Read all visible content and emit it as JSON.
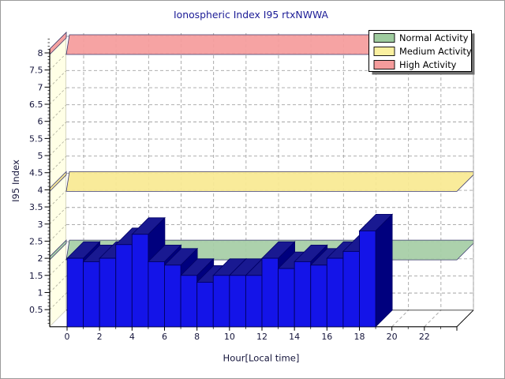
{
  "window": {
    "background": "#FFFFFF",
    "border_color": "#9B9B9B"
  },
  "chart_data": {
    "type": "bar",
    "projection": "3d",
    "title": "Ionospheric Index I95 rtxNWWA",
    "xlabel": "Hour[Local time]",
    "ylabel": "I95 Index",
    "x": [
      0,
      1,
      2,
      3,
      4,
      5,
      6,
      7,
      8,
      9,
      10,
      11,
      12,
      13,
      14,
      15,
      16,
      17,
      18
    ],
    "values": [
      2.0,
      1.9,
      2.0,
      2.4,
      2.7,
      1.9,
      1.8,
      1.5,
      1.3,
      1.5,
      1.5,
      1.5,
      2.0,
      1.7,
      1.9,
      1.8,
      2.0,
      2.2,
      2.8
    ],
    "x_axis": {
      "min": 0,
      "max": 24,
      "major_tick_step": 2,
      "minor_tick_step": 1,
      "tick_labels": [
        "0",
        "2",
        "4",
        "6",
        "8",
        "10",
        "12",
        "14",
        "16",
        "18",
        "20",
        "22"
      ]
    },
    "y_axis": {
      "min": 0,
      "max": 8.6,
      "major_tick_step": 0.5,
      "minor_tick_step": 0.1,
      "tick_labels": [
        "8",
        "7.5",
        "7",
        "6.5",
        "6",
        "5.5",
        "5",
        "4.5",
        "4",
        "3.5",
        "3",
        "2.5",
        "2",
        "1.5",
        "1",
        "0.5"
      ]
    },
    "grid": true,
    "legend_position": "top-right",
    "legend": [
      {
        "label": "Normal Activity",
        "color": "#9FCC9F"
      },
      {
        "label": "Medium Activity",
        "color": "#FAF0A0"
      },
      {
        "label": "High Activity",
        "color": "#F59C9C"
      }
    ],
    "bands": [
      {
        "name": "Normal Activity",
        "value": 2,
        "color": "#A6CDA6"
      },
      {
        "name": "Medium Activity",
        "value": 4,
        "color": "#F9E992"
      },
      {
        "name": "High Activity",
        "value": 8,
        "color": "#F59C9C"
      }
    ],
    "colors": {
      "bar_front": "#1414E8",
      "bar_top": "#191991",
      "bar_side": "#00007E",
      "wall": "#FFFFE6",
      "grid": "#A3A3A3",
      "title": "#1B1B96",
      "axis_text": "#16163C"
    }
  }
}
